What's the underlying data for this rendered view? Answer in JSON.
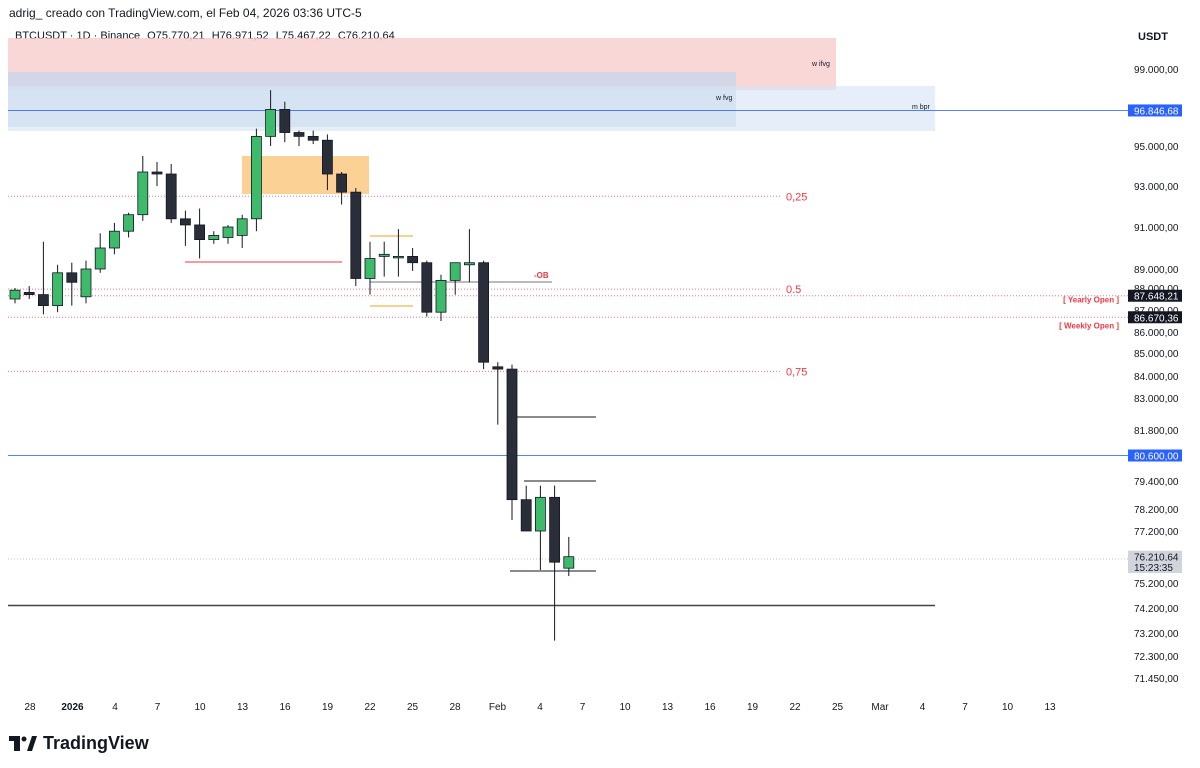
{
  "header": {
    "attribution": "adrig_ creado con TradingView.com, el Feb 04, 2026 03:36 UTC-5"
  },
  "symbol": {
    "name": "BTCUSDT · 1D · Binance",
    "open": "O75.770,21",
    "high": "H76.971,52",
    "low": "L75.467,22",
    "close": "C76.210,64"
  },
  "currency": "USDT",
  "logo": {
    "text": "TradingView"
  },
  "colors": {
    "up": "#26a69a",
    "up_fill": "#3dbb6b",
    "down": "#2a2e39",
    "grid_blue": "#2962ff",
    "red_zone": "#f7c9c9",
    "blue_zone": "#d6e4f5",
    "orange_zone": "#fbc57a",
    "fib": "#f23645"
  },
  "chart_data": {
    "type": "candlestick",
    "title": "",
    "y_axis_labels": [
      "99.000,00",
      "95.000,00",
      "93.000,00",
      "91.000,00",
      "89.000,00",
      "88.000,00",
      "87.000,00",
      "86.000,00",
      "85.000,00",
      "84.000,00",
      "83.000,00",
      "81.800,00",
      "79.400,00",
      "78.200,00",
      "77.200,00",
      "75.200,00",
      "74.200,00",
      "73.200,00",
      "72.300,00",
      "71.450,00"
    ],
    "y_axis_values": [
      99000,
      95000,
      93000,
      91000,
      89000,
      88000,
      87000,
      86000,
      85000,
      84000,
      83000,
      81800,
      79400,
      78200,
      77200,
      75200,
      74200,
      73200,
      72300,
      71450
    ],
    "x_axis_labels": [
      {
        "label": "28",
        "bold": false
      },
      {
        "label": "2026",
        "bold": true
      },
      {
        "label": "4",
        "bold": false
      },
      {
        "label": "7",
        "bold": false
      },
      {
        "label": "10",
        "bold": false
      },
      {
        "label": "13",
        "bold": false
      },
      {
        "label": "16",
        "bold": false
      },
      {
        "label": "19",
        "bold": false
      },
      {
        "label": "22",
        "bold": false
      },
      {
        "label": "25",
        "bold": false
      },
      {
        "label": "28",
        "bold": false
      },
      {
        "label": "Feb",
        "bold": false
      },
      {
        "label": "4",
        "bold": false
      },
      {
        "label": "7",
        "bold": false
      },
      {
        "label": "10",
        "bold": false
      },
      {
        "label": "13",
        "bold": false
      },
      {
        "label": "16",
        "bold": false
      },
      {
        "label": "19",
        "bold": false
      },
      {
        "label": "22",
        "bold": false
      },
      {
        "label": "25",
        "bold": false
      },
      {
        "label": "Mar",
        "bold": false
      },
      {
        "label": "4",
        "bold": false
      },
      {
        "label": "7",
        "bold": false
      },
      {
        "label": "10",
        "bold": false
      },
      {
        "label": "13",
        "bold": false
      }
    ],
    "candles": [
      {
        "date": "Dec 27",
        "o": 87500,
        "h": 88000,
        "l": 87300,
        "c": 87900
      },
      {
        "date": "Dec 28",
        "o": 87800,
        "h": 88100,
        "l": 87500,
        "c": 87700
      },
      {
        "date": "Dec 29",
        "o": 87700,
        "h": 90300,
        "l": 86800,
        "c": 87200
      },
      {
        "date": "Dec 30",
        "o": 87200,
        "h": 89200,
        "l": 86900,
        "c": 88800
      },
      {
        "date": "Dec 31",
        "o": 88800,
        "h": 89300,
        "l": 87200,
        "c": 88300
      },
      {
        "date": "Jan 1",
        "o": 87600,
        "h": 89400,
        "l": 87300,
        "c": 89000
      },
      {
        "date": "Jan 2",
        "o": 89000,
        "h": 90700,
        "l": 88800,
        "c": 90000
      },
      {
        "date": "Jan 3",
        "o": 90000,
        "h": 91200,
        "l": 89700,
        "c": 90800
      },
      {
        "date": "Jan 4",
        "o": 90800,
        "h": 91700,
        "l": 90500,
        "c": 91600
      },
      {
        "date": "Jan 5",
        "o": 91600,
        "h": 94500,
        "l": 91300,
        "c": 93700
      },
      {
        "date": "Jan 6",
        "o": 93700,
        "h": 94200,
        "l": 93000,
        "c": 93600
      },
      {
        "date": "Jan 7",
        "o": 93600,
        "h": 94100,
        "l": 91200,
        "c": 91400
      },
      {
        "date": "Jan 8",
        "o": 91400,
        "h": 91800,
        "l": 90100,
        "c": 91100
      },
      {
        "date": "Jan 9",
        "o": 91100,
        "h": 91900,
        "l": 89500,
        "c": 90400
      },
      {
        "date": "Jan 10",
        "o": 90400,
        "h": 90800,
        "l": 90200,
        "c": 90600
      },
      {
        "date": "Jan 11",
        "o": 90500,
        "h": 91100,
        "l": 90200,
        "c": 91000
      },
      {
        "date": "Jan 12",
        "o": 90600,
        "h": 91600,
        "l": 90000,
        "c": 91400
      },
      {
        "date": "Jan 13",
        "o": 91400,
        "h": 95900,
        "l": 90800,
        "c": 95500
      },
      {
        "date": "Jan 14",
        "o": 95500,
        "h": 97900,
        "l": 95000,
        "c": 96900
      },
      {
        "date": "Jan 15",
        "o": 96900,
        "h": 97300,
        "l": 95200,
        "c": 95700
      },
      {
        "date": "Jan 16",
        "o": 95700,
        "h": 95800,
        "l": 95000,
        "c": 95500
      },
      {
        "date": "Jan 17",
        "o": 95500,
        "h": 95800,
        "l": 95100,
        "c": 95300
      },
      {
        "date": "Jan 18",
        "o": 95300,
        "h": 95600,
        "l": 92800,
        "c": 93600
      },
      {
        "date": "Jan 19",
        "o": 93600,
        "h": 93700,
        "l": 92100,
        "c": 92700
      },
      {
        "date": "Jan 20",
        "o": 92700,
        "h": 92900,
        "l": 88100,
        "c": 88500
      },
      {
        "date": "Jan 21",
        "o": 88500,
        "h": 90300,
        "l": 87700,
        "c": 89500
      },
      {
        "date": "Jan 22",
        "o": 89600,
        "h": 90300,
        "l": 88600,
        "c": 89700
      },
      {
        "date": "Jan 23",
        "o": 89600,
        "h": 90900,
        "l": 88600,
        "c": 89600
      },
      {
        "date": "Jan 24",
        "o": 89600,
        "h": 90000,
        "l": 88900,
        "c": 89300
      },
      {
        "date": "Jan 25",
        "o": 89300,
        "h": 89400,
        "l": 86700,
        "c": 86900
      },
      {
        "date": "Jan 26",
        "o": 86900,
        "h": 88700,
        "l": 86500,
        "c": 88400
      },
      {
        "date": "Jan 27",
        "o": 88400,
        "h": 89300,
        "l": 87700,
        "c": 89300
      },
      {
        "date": "Jan 28",
        "o": 89200,
        "h": 90900,
        "l": 88300,
        "c": 89300
      },
      {
        "date": "Jan 29",
        "o": 89300,
        "h": 89400,
        "l": 84300,
        "c": 84600
      },
      {
        "date": "Jan 30",
        "o": 84400,
        "h": 84600,
        "l": 82000,
        "c": 84300
      },
      {
        "date": "Jan 31",
        "o": 84300,
        "h": 84500,
        "l": 77700,
        "c": 78600
      },
      {
        "date": "Feb 1",
        "o": 78600,
        "h": 79200,
        "l": 77200,
        "c": 77200
      },
      {
        "date": "Feb 2",
        "o": 77200,
        "h": 79200,
        "l": 75700,
        "c": 78700
      },
      {
        "date": "Feb 3",
        "o": 78700,
        "h": 79200,
        "l": 72900,
        "c": 76000
      },
      {
        "date": "Feb 4",
        "o": 75770,
        "h": 76972,
        "l": 75467,
        "c": 76211
      }
    ],
    "price_tags": [
      {
        "label": "96.846,68",
        "value": 96846.68,
        "color": "#2962ff",
        "text_color": "#ffffff"
      },
      {
        "label": "87.648,21",
        "value": 87648.21,
        "color": "#131722",
        "text_color": "#ffffff"
      },
      {
        "label": "86.670,36",
        "value": 86670.36,
        "color": "#131722",
        "text_color": "#ffffff"
      },
      {
        "label": "80.600,00",
        "value": 80600,
        "color": "#2962ff",
        "text_color": "#ffffff"
      },
      {
        "label": "76.210,64",
        "value": 76210.64,
        "color": "#d1d4dc",
        "text_color": "#131722"
      },
      {
        "label": "15:23:35",
        "value": 75700,
        "color": "#d1d4dc",
        "text_color": "#131722"
      }
    ],
    "zones": [
      {
        "label": "w ifvg",
        "type": "red"
      },
      {
        "label": "w fvg",
        "type": "blue"
      },
      {
        "label": "m bpr",
        "type": "blue"
      }
    ],
    "fib_levels": [
      {
        "label": "0,25",
        "value": 92500
      },
      {
        "label": "0.5",
        "value": 87950
      },
      {
        "label": "0,75",
        "value": 84200
      }
    ],
    "annotations": [
      {
        "label": "-OB",
        "value": 88600
      },
      {
        "label": "[ Yearly Open ]",
        "value": 87648.21
      },
      {
        "label": "[ Weekly Open ]",
        "value": 86670.36
      }
    ],
    "horizontal_lines": [
      {
        "value": 96846.68,
        "color": "#2962ff"
      },
      {
        "value": 80600,
        "color": "#2962ff"
      },
      {
        "value": 74300,
        "color": "#131722"
      }
    ]
  }
}
